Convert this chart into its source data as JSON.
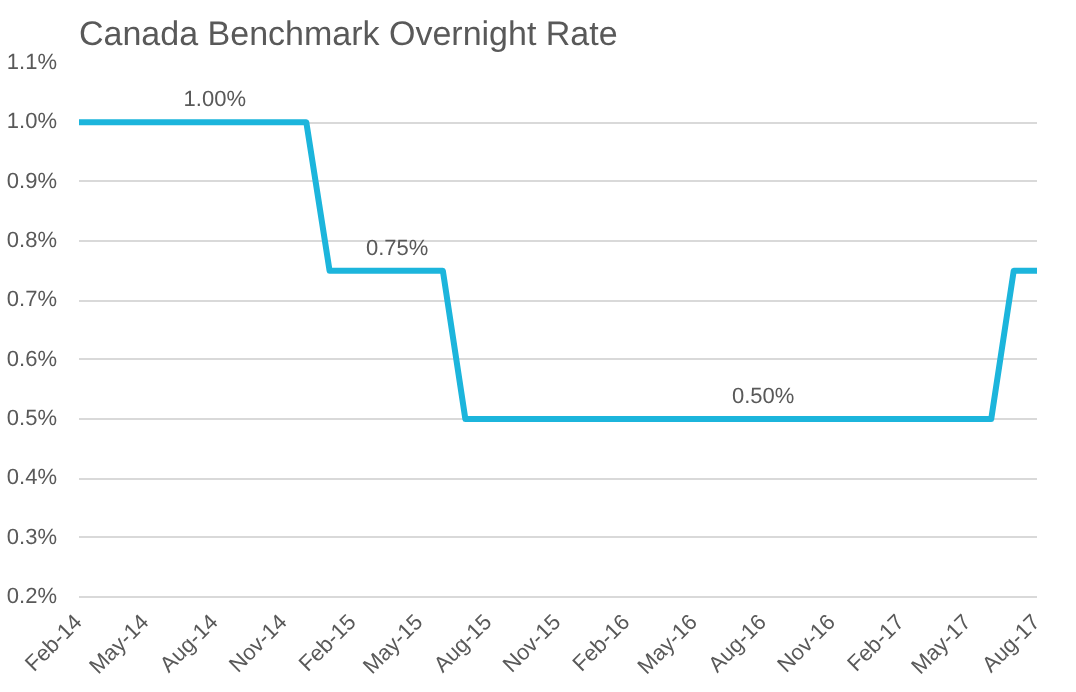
{
  "chart_data": {
    "type": "line",
    "title": "Canada Benchmark Overnight Rate",
    "x": [
      "2014-02",
      "2014-03",
      "2014-04",
      "2014-05",
      "2014-06",
      "2014-07",
      "2014-08",
      "2014-09",
      "2014-10",
      "2014-11",
      "2014-12",
      "2015-01",
      "2015-02",
      "2015-03",
      "2015-04",
      "2015-05",
      "2015-06",
      "2015-07",
      "2015-08",
      "2015-09",
      "2015-10",
      "2015-11",
      "2015-12",
      "2016-01",
      "2016-02",
      "2016-03",
      "2016-04",
      "2016-05",
      "2016-06",
      "2016-07",
      "2016-08",
      "2016-09",
      "2016-10",
      "2016-11",
      "2016-12",
      "2017-01",
      "2017-02",
      "2017-03",
      "2017-04",
      "2017-05",
      "2017-06",
      "2017-07",
      "2017-08"
    ],
    "series": [
      {
        "color": "#1cb5dc",
        "values": [
          1.0,
          1.0,
          1.0,
          1.0,
          1.0,
          1.0,
          1.0,
          1.0,
          1.0,
          1.0,
          1.0,
          0.75,
          0.75,
          0.75,
          0.75,
          0.75,
          0.75,
          0.5,
          0.5,
          0.5,
          0.5,
          0.5,
          0.5,
          0.5,
          0.5,
          0.5,
          0.5,
          0.5,
          0.5,
          0.5,
          0.5,
          0.5,
          0.5,
          0.5,
          0.5,
          0.5,
          0.5,
          0.5,
          0.5,
          0.5,
          0.5,
          0.75,
          0.75
        ]
      }
    ],
    "xlim": [
      "2014-02",
      "2017-08"
    ],
    "xticks": [
      {
        "value": "2014-02",
        "label": "Feb-14"
      },
      {
        "value": "2014-05",
        "label": "May-14"
      },
      {
        "value": "2014-08",
        "label": "Aug-14"
      },
      {
        "value": "2014-11",
        "label": "Nov-14"
      },
      {
        "value": "2015-02",
        "label": "Feb-15"
      },
      {
        "value": "2015-05",
        "label": "May-15"
      },
      {
        "value": "2015-08",
        "label": "Aug-15"
      },
      {
        "value": "2015-11",
        "label": "Nov-15"
      },
      {
        "value": "2016-02",
        "label": "Feb-16"
      },
      {
        "value": "2016-05",
        "label": "May-16"
      },
      {
        "value": "2016-08",
        "label": "Aug-16"
      },
      {
        "value": "2016-11",
        "label": "Nov-16"
      },
      {
        "value": "2017-02",
        "label": "Feb-17"
      },
      {
        "value": "2017-05",
        "label": "May-17"
      },
      {
        "value": "2017-08",
        "label": "Aug-17"
      }
    ],
    "ylim": [
      0.2,
      1.1
    ],
    "yticks": [
      {
        "value": 0.2,
        "label": "0.2%"
      },
      {
        "value": 0.3,
        "label": "0.3%"
      },
      {
        "value": 0.4,
        "label": "0.4%"
      },
      {
        "value": 0.5,
        "label": "0.5%"
      },
      {
        "value": 0.6,
        "label": "0.6%"
      },
      {
        "value": 0.7,
        "label": "0.7%"
      },
      {
        "value": 0.8,
        "label": "0.8%"
      },
      {
        "value": 0.9,
        "label": "0.9%"
      },
      {
        "value": 1.0,
        "label": "1.0%"
      },
      {
        "value": 1.1,
        "label": "1.1%"
      }
    ],
    "grid": "y",
    "marker": "none",
    "line_style": "solid",
    "annotations": [
      {
        "text": "1.00%",
        "x": "2014-08",
        "y": 1.0
      },
      {
        "text": "0.75%",
        "x": "2015-04",
        "y": 0.75
      },
      {
        "text": "0.50%",
        "x": "2016-08",
        "y": 0.5
      }
    ]
  }
}
